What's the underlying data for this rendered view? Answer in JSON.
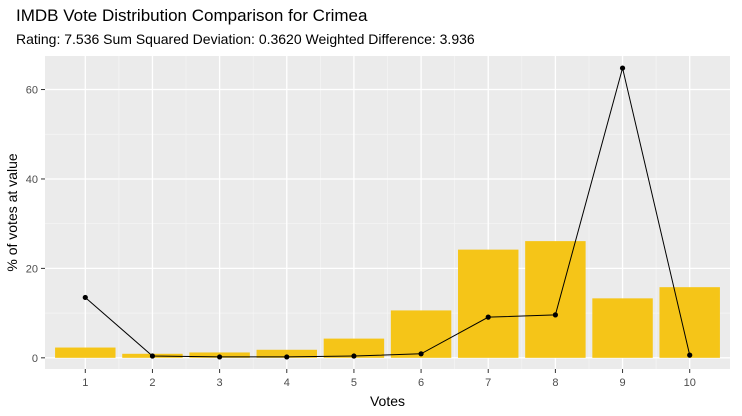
{
  "chart_data": {
    "type": "bar",
    "title": "IMDB Vote Distribution Comparison for Crimea",
    "subtitle": "Rating: 7.536 Sum Squared Deviation: 0.3620 Weighted Difference: 3.936",
    "xlabel": "Votes",
    "ylabel": "% of votes at value",
    "categories": [
      "1",
      "2",
      "3",
      "4",
      "5",
      "6",
      "7",
      "8",
      "9",
      "10"
    ],
    "xlim": [
      0.4,
      10.6
    ],
    "ylim": [
      -2.5,
      67.5
    ],
    "yticks": [
      0,
      20,
      40,
      60
    ],
    "grid": true,
    "legend": "none",
    "series": [
      {
        "type": "bar",
        "values": [
          2.3,
          0.9,
          1.2,
          1.8,
          4.3,
          10.6,
          24.2,
          26.1,
          13.3,
          15.8
        ],
        "color": "#F5C518"
      },
      {
        "type": "line",
        "values": [
          13.5,
          0.4,
          0.2,
          0.2,
          0.4,
          0.9,
          9.1,
          9.6,
          64.8,
          0.6
        ],
        "color": "#000000"
      }
    ]
  }
}
